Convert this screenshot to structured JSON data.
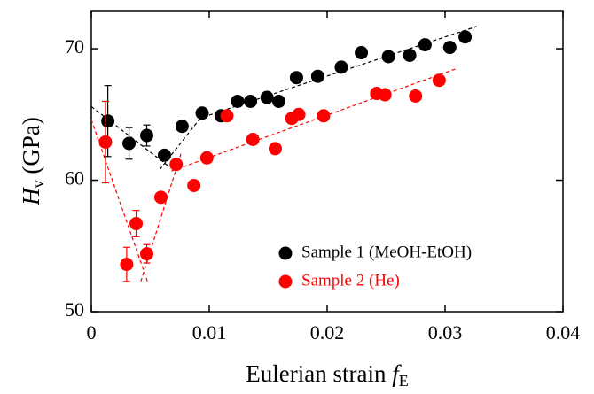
{
  "chart_data": {
    "type": "scatter",
    "xlabel": {
      "text": "Eulerian strain ",
      "symbol": "f",
      "subscript": "E"
    },
    "ylabel": {
      "symbol": "H",
      "subscript": "v",
      "unit": " (GPa)"
    },
    "xlim": [
      0,
      0.04
    ],
    "ylim": [
      50,
      72.9
    ],
    "xticks": [
      0,
      0.01,
      0.02,
      0.03,
      0.04
    ],
    "yticks": [
      50,
      60,
      70
    ],
    "legend_position": "lower right",
    "series": [
      {
        "name": "Sample 1 (MeOH-EtOH)",
        "color": "#000000",
        "x": [
          0.0014,
          0.0032,
          0.0047,
          0.0062,
          0.0077,
          0.0094,
          0.011,
          0.0124,
          0.0135,
          0.0149,
          0.0159,
          0.0174,
          0.0192,
          0.0212,
          0.0229,
          0.0252,
          0.027,
          0.0283,
          0.0304,
          0.0317
        ],
        "values": [
          64.5,
          62.8,
          63.4,
          61.9,
          64.1,
          65.1,
          64.9,
          66.0,
          66.0,
          66.3,
          66.0,
          67.8,
          67.9,
          68.6,
          69.7,
          69.4,
          69.5,
          70.3,
          70.1,
          70.9
        ],
        "errors": [
          2.7,
          1.2,
          0.8,
          null,
          null,
          null,
          null,
          null,
          null,
          null,
          null,
          null,
          null,
          null,
          null,
          null,
          null,
          null,
          null,
          null
        ]
      },
      {
        "name": "Sample 2 (He)",
        "color": "#ff0000",
        "x": [
          0.0012,
          0.003,
          0.0038,
          0.0047,
          0.0059,
          0.0072,
          0.0087,
          0.0098,
          0.0115,
          0.0137,
          0.0156,
          0.017,
          0.0176,
          0.0197,
          0.0242,
          0.0249,
          0.0275,
          0.0295
        ],
        "values": [
          62.9,
          53.6,
          56.7,
          54.4,
          58.7,
          61.2,
          59.6,
          61.7,
          64.9,
          63.1,
          62.4,
          64.7,
          65.0,
          64.9,
          66.6,
          66.5,
          66.4,
          67.6
        ],
        "errors": [
          3.1,
          1.3,
          1.0,
          0.7,
          null,
          null,
          null,
          null,
          null,
          null,
          null,
          null,
          null,
          null,
          null,
          null,
          null,
          null
        ]
      }
    ],
    "fit_lines": [
      {
        "color": "#000000",
        "x": [
          0,
          0.0065
        ],
        "y": [
          65.6,
          61.1
        ]
      },
      {
        "color": "#000000",
        "x": [
          0.0058,
          0.0095
        ],
        "y": [
          60.8,
          65.0
        ]
      },
      {
        "color": "#000000",
        "x": [
          0.0095,
          0.0327
        ],
        "y": [
          64.8,
          71.7
        ]
      },
      {
        "color": "#ff0000",
        "x": [
          0,
          0.0048
        ],
        "y": [
          64.6,
          52.2
        ]
      },
      {
        "color": "#ff0000",
        "x": [
          0.0042,
          0.0076
        ],
        "y": [
          52.3,
          62.0
        ]
      },
      {
        "color": "#ff0000",
        "x": [
          0.0068,
          0.031
        ],
        "y": [
          60.7,
          68.5
        ]
      }
    ]
  }
}
